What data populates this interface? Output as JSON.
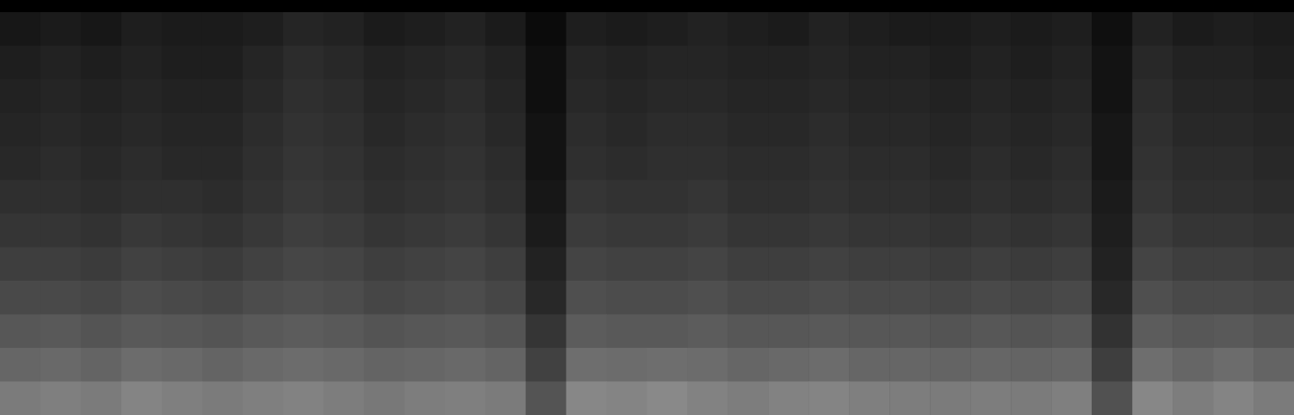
{
  "chart_data": {
    "type": "heatmap",
    "tick_labels": false,
    "zlim": [
      0,
      100
    ],
    "values": [
      [
        5,
        6,
        5,
        7,
        6,
        6,
        7,
        9,
        8,
        6,
        7,
        8,
        6,
        2,
        7,
        6,
        7,
        8,
        7,
        6,
        8,
        7,
        6,
        6,
        7,
        6,
        7,
        3,
        8,
        6,
        7,
        6
      ],
      [
        7,
        8,
        7,
        8,
        7,
        7,
        9,
        11,
        10,
        8,
        9,
        10,
        8,
        3,
        9,
        8,
        9,
        9,
        8,
        8,
        9,
        8,
        8,
        7,
        8,
        7,
        8,
        4,
        10,
        8,
        8,
        7
      ],
      [
        8,
        9,
        8,
        9,
        8,
        8,
        10,
        12,
        11,
        9,
        10,
        11,
        9,
        3,
        10,
        9,
        10,
        10,
        9,
        9,
        10,
        9,
        9,
        8,
        9,
        8,
        9,
        4,
        11,
        9,
        9,
        8
      ],
      [
        9,
        10,
        9,
        10,
        9,
        9,
        11,
        13,
        12,
        10,
        11,
        12,
        10,
        4,
        11,
        10,
        11,
        11,
        10,
        10,
        11,
        10,
        10,
        9,
        10,
        9,
        10,
        5,
        12,
        10,
        10,
        9
      ],
      [
        10,
        11,
        10,
        11,
        10,
        10,
        12,
        14,
        13,
        11,
        12,
        13,
        11,
        4,
        12,
        11,
        12,
        12,
        11,
        11,
        12,
        11,
        11,
        10,
        11,
        10,
        11,
        5,
        13,
        11,
        11,
        10
      ],
      [
        12,
        12,
        11,
        12,
        12,
        11,
        13,
        15,
        14,
        12,
        13,
        14,
        12,
        5,
        14,
        13,
        13,
        14,
        12,
        12,
        13,
        12,
        12,
        11,
        12,
        11,
        12,
        6,
        14,
        12,
        12,
        11
      ],
      [
        14,
        14,
        13,
        15,
        14,
        13,
        15,
        17,
        16,
        14,
        15,
        16,
        14,
        6,
        16,
        15,
        15,
        16,
        14,
        14,
        15,
        14,
        14,
        13,
        14,
        13,
        14,
        7,
        16,
        14,
        14,
        13
      ],
      [
        17,
        17,
        16,
        18,
        17,
        16,
        18,
        20,
        19,
        17,
        18,
        19,
        17,
        8,
        19,
        18,
        18,
        19,
        17,
        17,
        18,
        17,
        17,
        16,
        17,
        16,
        17,
        8,
        19,
        17,
        17,
        16
      ],
      [
        21,
        21,
        20,
        22,
        21,
        20,
        22,
        23,
        22,
        20,
        21,
        22,
        20,
        10,
        23,
        22,
        22,
        23,
        21,
        21,
        22,
        21,
        21,
        20,
        21,
        20,
        21,
        10,
        23,
        21,
        21,
        20
      ],
      [
        26,
        27,
        25,
        27,
        26,
        25,
        27,
        28,
        27,
        25,
        26,
        27,
        25,
        14,
        28,
        27,
        27,
        28,
        26,
        26,
        27,
        26,
        26,
        25,
        26,
        25,
        26,
        13,
        28,
        26,
        27,
        25
      ],
      [
        32,
        33,
        31,
        34,
        33,
        31,
        33,
        34,
        33,
        31,
        32,
        33,
        31,
        18,
        35,
        34,
        35,
        34,
        32,
        33,
        34,
        32,
        32,
        31,
        32,
        31,
        32,
        17,
        35,
        32,
        34,
        31
      ],
      [
        40,
        42,
        40,
        44,
        42,
        40,
        42,
        43,
        41,
        39,
        41,
        42,
        40,
        25,
        45,
        44,
        46,
        43,
        41,
        43,
        44,
        42,
        41,
        40,
        41,
        40,
        42,
        24,
        45,
        41,
        44,
        40
      ]
    ]
  }
}
